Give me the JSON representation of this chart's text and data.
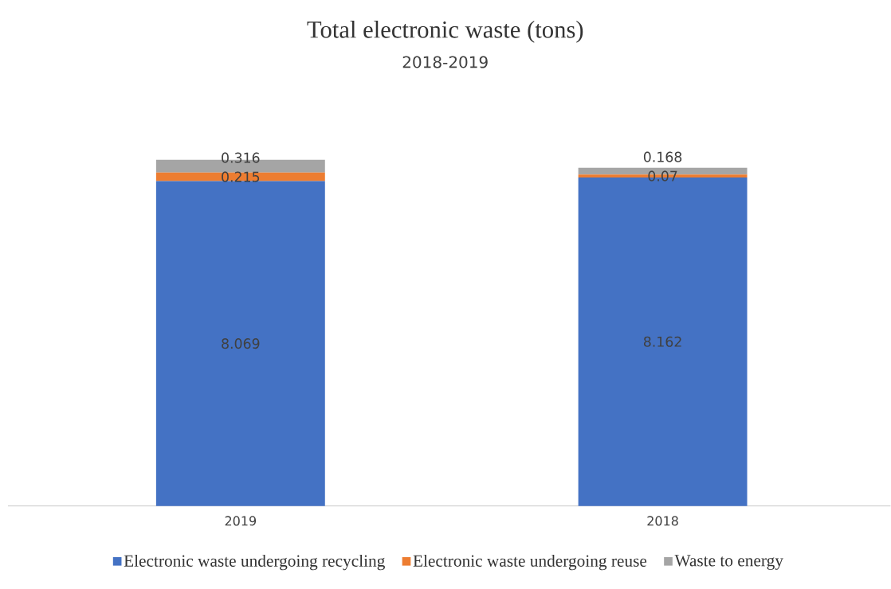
{
  "chart_data": {
    "type": "bar",
    "stacked": true,
    "title": "Total electronic waste (tons)",
    "subtitle": "2018-2019",
    "categories": [
      "2019",
      "2018"
    ],
    "series": [
      {
        "name": "Electronic waste undergoing recycling",
        "color": "#4472c4",
        "values": [
          8.069,
          8.162
        ]
      },
      {
        "name": "Electronic waste undergoing reuse",
        "color": "#ed7d31",
        "values": [
          0.215,
          0.07
        ]
      },
      {
        "name": "Waste to energy",
        "color": "#a5a5a5",
        "values": [
          0.316,
          0.168
        ]
      }
    ],
    "data_labels": true,
    "legend": "bottom",
    "tick_labels": "x"
  }
}
